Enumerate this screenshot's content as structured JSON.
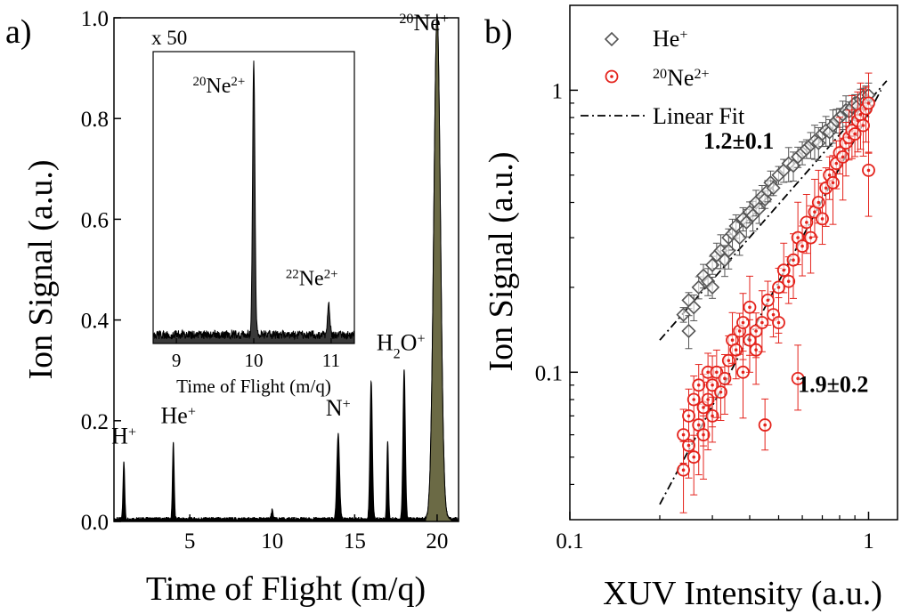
{
  "figure": {
    "panel_a_label": "a)",
    "panel_b_label": "b)"
  },
  "chart_data": [
    {
      "type": "line",
      "panel": "a",
      "title": "",
      "xlabel": "Time of Flight (m/q)",
      "ylabel": "Ion Signal (a.u.)",
      "xlim": [
        0.4,
        21.3
      ],
      "ylim": [
        0,
        1.0
      ],
      "xticks": [
        5,
        10,
        15,
        20
      ],
      "yticks": [
        0.0,
        0.2,
        0.4,
        0.6,
        0.8,
        1.0
      ],
      "ytick_labels": [
        "0.0",
        "0.2",
        "0.4",
        "0.6",
        "0.8",
        "1.0"
      ],
      "baseline": 0.005,
      "peaks": [
        {
          "x": 1.0,
          "height": 0.115,
          "width": 0.05
        },
        {
          "x": 4.0,
          "height": 0.152,
          "width": 0.05
        },
        {
          "x": 10.0,
          "height": 0.018,
          "width": 0.05
        },
        {
          "x": 14.0,
          "height": 0.168,
          "width": 0.08
        },
        {
          "x": 16.0,
          "height": 0.275,
          "width": 0.07
        },
        {
          "x": 17.0,
          "height": 0.155,
          "width": 0.05
        },
        {
          "x": 18.0,
          "height": 0.298,
          "width": 0.07
        },
        {
          "x": 20.0,
          "height": 1.0,
          "width": 0.2
        }
      ],
      "peak_labels": [
        {
          "base": "H",
          "sup": "+",
          "pre": "",
          "x": 1.0,
          "y": 0.155
        },
        {
          "base": "He",
          "sup": "+",
          "pre": "",
          "x": 4.3,
          "y": 0.195
        },
        {
          "base": "N",
          "sup": "+",
          "pre": "",
          "x": 14.0,
          "y": 0.21
        },
        {
          "base": "H",
          "sub": "2",
          "tail": "O",
          "sup": "+",
          "pre": "",
          "x": 17.8,
          "y": 0.34
        },
        {
          "base": "Ne",
          "sup": "+",
          "pre": "20",
          "x": 19.2,
          "y": 0.975
        }
      ],
      "inset": {
        "scale_label": "x 50",
        "xlabel": "Time of Flight (m/q)",
        "xlim": [
          8.7,
          11.3
        ],
        "ylim": [
          0,
          1.0
        ],
        "xticks": [
          9,
          10,
          11
        ],
        "baseline": 0.03,
        "peaks": [
          {
            "x": 10.0,
            "height": 0.94,
            "width": 0.015
          },
          {
            "x": 10.97,
            "height": 0.1,
            "width": 0.015
          }
        ],
        "labels": [
          {
            "pre": "20",
            "base": "Ne",
            "sup": "2+",
            "x": 9.55,
            "y": 0.86
          },
          {
            "pre": "22",
            "base": "Ne",
            "sup": "2+",
            "x": 10.75,
            "y": 0.2
          }
        ]
      }
    },
    {
      "type": "scatter",
      "panel": "b",
      "title": "",
      "xlabel": "XUV Intensity (a.u.)",
      "ylabel": "Ion Signal (a.u.)",
      "xscale": "log",
      "yscale": "log",
      "xlim": [
        0.1,
        1.25
      ],
      "ylim": [
        0.03,
        2.0
      ],
      "xticks": [
        0.1,
        1
      ],
      "xtick_labels": [
        "0.1",
        "1"
      ],
      "yticks": [
        0.1,
        1
      ],
      "ytick_labels": [
        "0.1",
        "1"
      ],
      "legend_position": "top-left",
      "series": [
        {
          "name": "He⁺",
          "legend_base": "He",
          "legend_sup": "+",
          "legend_pre": "",
          "marker": "diamond",
          "color": "#555555",
          "x": [
            0.24,
            0.25,
            0.25,
            0.26,
            0.27,
            0.28,
            0.29,
            0.3,
            0.3,
            0.31,
            0.32,
            0.33,
            0.34,
            0.34,
            0.35,
            0.36,
            0.37,
            0.38,
            0.39,
            0.4,
            0.41,
            0.42,
            0.43,
            0.44,
            0.45,
            0.46,
            0.47,
            0.48,
            0.5,
            0.52,
            0.54,
            0.56,
            0.58,
            0.6,
            0.62,
            0.64,
            0.66,
            0.68,
            0.7,
            0.72,
            0.74,
            0.76,
            0.78,
            0.8,
            0.82,
            0.84,
            0.86,
            0.88,
            0.9,
            0.92,
            0.94,
            0.96,
            0.98,
            1.0
          ],
          "y": [
            0.16,
            0.14,
            0.18,
            0.17,
            0.2,
            0.22,
            0.21,
            0.24,
            0.2,
            0.26,
            0.27,
            0.25,
            0.3,
            0.27,
            0.31,
            0.33,
            0.3,
            0.35,
            0.34,
            0.37,
            0.36,
            0.4,
            0.38,
            0.42,
            0.41,
            0.44,
            0.47,
            0.45,
            0.5,
            0.52,
            0.55,
            0.54,
            0.58,
            0.6,
            0.62,
            0.64,
            0.66,
            0.65,
            0.7,
            0.72,
            0.71,
            0.75,
            0.78,
            0.8,
            0.82,
            0.85,
            0.84,
            0.87,
            0.9,
            0.88,
            0.93,
            0.95,
            0.92,
            0.96
          ],
          "err": 0.1
        },
        {
          "name": "²⁰Ne²⁺",
          "legend_base": "Ne",
          "legend_sup": "2+",
          "legend_pre": "20",
          "marker": "circle-dot",
          "color": "#e4231c",
          "x": [
            0.24,
            0.24,
            0.25,
            0.25,
            0.26,
            0.26,
            0.27,
            0.27,
            0.28,
            0.28,
            0.29,
            0.29,
            0.3,
            0.3,
            0.31,
            0.32,
            0.33,
            0.34,
            0.35,
            0.36,
            0.37,
            0.38,
            0.38,
            0.4,
            0.4,
            0.42,
            0.42,
            0.44,
            0.45,
            0.46,
            0.48,
            0.5,
            0.5,
            0.52,
            0.54,
            0.56,
            0.58,
            0.58,
            0.6,
            0.62,
            0.64,
            0.66,
            0.68,
            0.7,
            0.72,
            0.74,
            0.76,
            0.78,
            0.8,
            0.82,
            0.84,
            0.86,
            0.88,
            0.9,
            0.92,
            0.94,
            0.96,
            0.98,
            1.0,
            1.0
          ],
          "y": [
            0.045,
            0.06,
            0.055,
            0.07,
            0.05,
            0.08,
            0.065,
            0.09,
            0.06,
            0.075,
            0.08,
            0.1,
            0.07,
            0.09,
            0.1,
            0.085,
            0.095,
            0.11,
            0.13,
            0.12,
            0.14,
            0.1,
            0.15,
            0.13,
            0.17,
            0.12,
            0.14,
            0.15,
            0.065,
            0.18,
            0.16,
            0.2,
            0.15,
            0.23,
            0.21,
            0.25,
            0.3,
            0.095,
            0.28,
            0.34,
            0.3,
            0.37,
            0.4,
            0.35,
            0.45,
            0.5,
            0.47,
            0.55,
            0.6,
            0.58,
            0.65,
            0.68,
            0.72,
            0.7,
            0.78,
            0.82,
            0.75,
            0.86,
            0.9,
            0.52
          ],
          "err": 0.25
        }
      ],
      "fit": {
        "name": "Linear Fit",
        "lines": [
          {
            "x": [
              0.2,
              1.15
            ],
            "y": [
              0.13,
              1.08
            ]
          },
          {
            "x": [
              0.2,
              1.1
            ],
            "y": [
              0.034,
              1.0
            ]
          }
        ]
      },
      "annotations": [
        {
          "text": "1.2±0.1",
          "x": 0.28,
          "y": 0.62,
          "color": "#000000"
        },
        {
          "text": "1.9±0.2",
          "x": 0.58,
          "y": 0.085,
          "color": "#e4231c"
        }
      ]
    }
  ]
}
